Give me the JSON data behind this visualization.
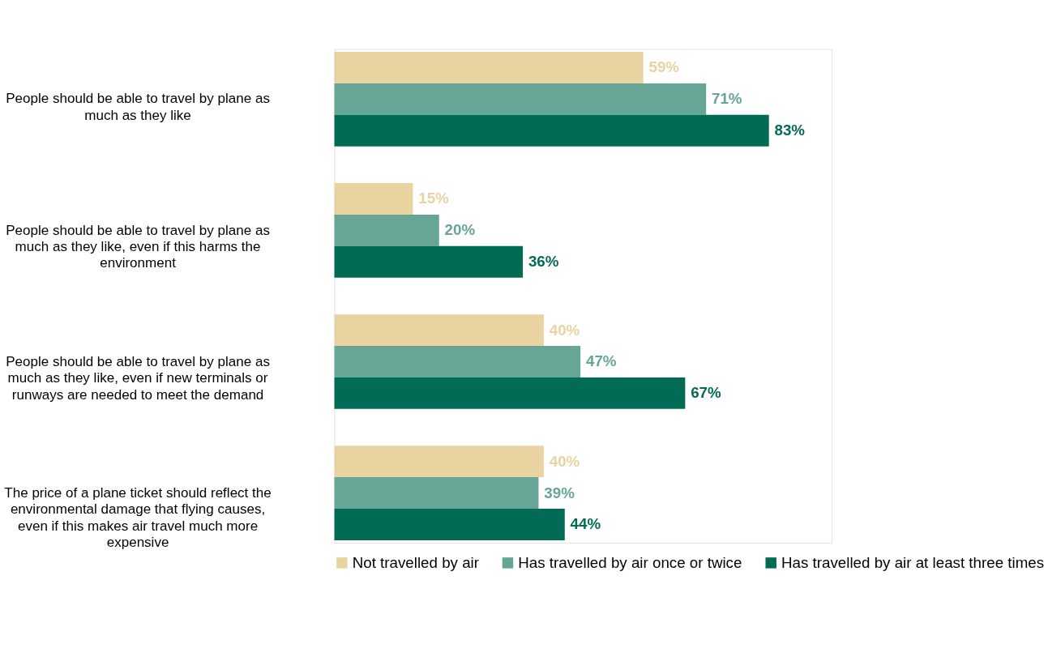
{
  "chart_data": {
    "type": "bar",
    "orientation": "horizontal",
    "categories": [
      "People should be able to travel by plane as\nmuch as they like",
      "People should be able to travel by plane as\nmuch as they like, even if this harms the\nenvironment",
      "People should be able to travel by plane as\nmuch as they like, even if new terminals or\nrunways are needed to meet the demand",
      "The price of a plane ticket should reflect the\nenvironmental damage that flying causes,\neven if this makes air travel much more\nexpensive"
    ],
    "series": [
      {
        "name": "Not travelled by air",
        "color": "#e9d3a0",
        "values": [
          59,
          15,
          40,
          40
        ],
        "value_labels": [
          "59%",
          "15%",
          "40%",
          "40%"
        ]
      },
      {
        "name": "Has travelled by air once or twice",
        "color": "#67a597",
        "values": [
          71,
          20,
          47,
          39
        ],
        "value_labels": [
          "71%",
          "20%",
          "47%",
          "39%"
        ]
      },
      {
        "name": "Has travelled by air at least three times",
        "color": "#026b55",
        "values": [
          83,
          36,
          67,
          44
        ],
        "value_labels": [
          "83%",
          "36%",
          "67%",
          "44%"
        ]
      }
    ],
    "xlim": [
      0,
      95
    ],
    "tick_labels": "y",
    "grid": false,
    "legend": "bottom"
  }
}
